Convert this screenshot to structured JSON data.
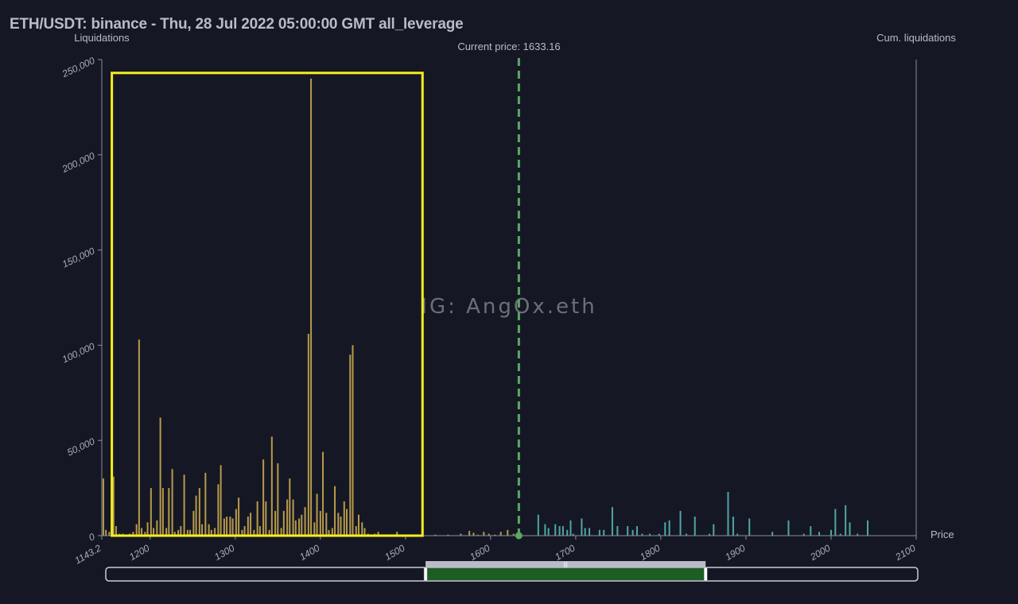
{
  "title": "ETH/USDT: binance - Thu, 28 Jul 2022 05:00:00 GMT all_leverage",
  "watermark": "IG: AngOx.eth",
  "colors": {
    "background": "#151824",
    "long_bars": "#b89a4a",
    "short_bars": "#4fa6a6",
    "current_price_line": "#5aa864",
    "highlight_box": "#f5ee1e",
    "axis": "#8a8e99",
    "navigator_fill": "#1d5e25"
  },
  "chart_data": {
    "type": "bar",
    "ylabel": "Liquidations",
    "y2label": "Cum. liquidations",
    "xlabel": "Price",
    "current_price_label": "Current price: 1633.16",
    "current_price": 1633.16,
    "xlim": [
      1143.2,
      2100
    ],
    "ylim": [
      0,
      250000
    ],
    "x_ticks": [
      "1143.2",
      "1200",
      "1300",
      "1400",
      "1500",
      "1600",
      "1700",
      "1800",
      "1900",
      "2000",
      "2100"
    ],
    "y_ticks": [
      "0",
      "50,000",
      "100,000",
      "150,000",
      "200,000",
      "250,000"
    ],
    "highlight_box_price_range": [
      1155,
      1520
    ],
    "highlight_box_value_range": [
      0,
      243000
    ],
    "series": [
      {
        "side": "long",
        "points": [
          [
            1145,
            30000
          ],
          [
            1148,
            3000
          ],
          [
            1152,
            2000
          ],
          [
            1157,
            31000
          ],
          [
            1160,
            5000
          ],
          [
            1164,
            1000
          ],
          [
            1168,
            1000
          ],
          [
            1172,
            500
          ],
          [
            1176,
            1000
          ],
          [
            1180,
            2000
          ],
          [
            1184,
            6000
          ],
          [
            1187,
            103000
          ],
          [
            1190,
            4000
          ],
          [
            1194,
            2000
          ],
          [
            1197,
            7000
          ],
          [
            1201,
            25000
          ],
          [
            1204,
            4000
          ],
          [
            1208,
            8000
          ],
          [
            1212,
            62000
          ],
          [
            1215,
            25000
          ],
          [
            1219,
            4000
          ],
          [
            1222,
            25000
          ],
          [
            1226,
            35000
          ],
          [
            1229,
            2000
          ],
          [
            1233,
            3000
          ],
          [
            1236,
            5000
          ],
          [
            1240,
            32000
          ],
          [
            1244,
            3000
          ],
          [
            1247,
            3000
          ],
          [
            1251,
            13000
          ],
          [
            1254,
            21000
          ],
          [
            1258,
            25000
          ],
          [
            1261,
            6000
          ],
          [
            1265,
            33000
          ],
          [
            1269,
            6000
          ],
          [
            1272,
            3000
          ],
          [
            1276,
            4000
          ],
          [
            1280,
            27000
          ],
          [
            1283,
            37000
          ],
          [
            1287,
            9000
          ],
          [
            1290,
            10000
          ],
          [
            1294,
            10000
          ],
          [
            1297,
            9000
          ],
          [
            1301,
            14000
          ],
          [
            1304,
            20000
          ],
          [
            1308,
            3000
          ],
          [
            1311,
            5000
          ],
          [
            1315,
            10000
          ],
          [
            1318,
            12000
          ],
          [
            1322,
            3000
          ],
          [
            1326,
            18000
          ],
          [
            1329,
            5000
          ],
          [
            1333,
            40000
          ],
          [
            1336,
            18000
          ],
          [
            1340,
            3000
          ],
          [
            1343,
            52000
          ],
          [
            1347,
            13000
          ],
          [
            1350,
            38000
          ],
          [
            1354,
            4000
          ],
          [
            1357,
            13000
          ],
          [
            1361,
            19000
          ],
          [
            1364,
            30000
          ],
          [
            1368,
            19000
          ],
          [
            1371,
            8000
          ],
          [
            1375,
            9000
          ],
          [
            1378,
            11000
          ],
          [
            1382,
            15000
          ],
          [
            1386,
            106000
          ],
          [
            1389,
            240000
          ],
          [
            1393,
            7000
          ],
          [
            1396,
            22000
          ],
          [
            1400,
            13000
          ],
          [
            1403,
            44000
          ],
          [
            1407,
            12000
          ],
          [
            1410,
            3000
          ],
          [
            1414,
            4000
          ],
          [
            1417,
            26000
          ],
          [
            1421,
            12000
          ],
          [
            1424,
            10000
          ],
          [
            1428,
            18000
          ],
          [
            1431,
            14000
          ],
          [
            1435,
            95000
          ],
          [
            1438,
            100000
          ],
          [
            1442,
            5000
          ],
          [
            1445,
            11000
          ],
          [
            1449,
            7000
          ],
          [
            1452,
            4000
          ],
          [
            1456,
            1000
          ],
          [
            1460,
            500
          ],
          [
            1464,
            1000
          ],
          [
            1468,
            2000
          ],
          [
            1478,
            500
          ],
          [
            1490,
            2000
          ],
          [
            1505,
            500
          ],
          [
            1520,
            500
          ],
          [
            1535,
            500
          ],
          [
            1550,
            500
          ],
          [
            1565,
            1000
          ],
          [
            1575,
            2500
          ],
          [
            1580,
            1500
          ],
          [
            1585,
            500
          ],
          [
            1592,
            2000
          ],
          [
            1598,
            1000
          ],
          [
            1605,
            500
          ],
          [
            1612,
            2000
          ],
          [
            1620,
            3000
          ],
          [
            1627,
            1000
          ]
        ]
      },
      {
        "side": "short",
        "points": [
          [
            1656,
            11000
          ],
          [
            1664,
            6000
          ],
          [
            1668,
            4000
          ],
          [
            1676,
            6000
          ],
          [
            1681,
            5000
          ],
          [
            1685,
            5000
          ],
          [
            1690,
            3000
          ],
          [
            1694,
            8000
          ],
          [
            1697,
            1000
          ],
          [
            1707,
            9000
          ],
          [
            1711,
            4000
          ],
          [
            1716,
            4000
          ],
          [
            1728,
            3000
          ],
          [
            1733,
            3000
          ],
          [
            1743,
            15000
          ],
          [
            1749,
            5000
          ],
          [
            1761,
            5000
          ],
          [
            1767,
            3000
          ],
          [
            1772,
            5000
          ],
          [
            1778,
            1000
          ],
          [
            1787,
            1000
          ],
          [
            1798,
            1000
          ],
          [
            1805,
            7000
          ],
          [
            1810,
            8000
          ],
          [
            1823,
            13000
          ],
          [
            1830,
            1000
          ],
          [
            1840,
            10000
          ],
          [
            1857,
            1000
          ],
          [
            1862,
            6000
          ],
          [
            1879,
            23000
          ],
          [
            1885,
            10000
          ],
          [
            1890,
            1000
          ],
          [
            1904,
            9000
          ],
          [
            1931,
            2000
          ],
          [
            1950,
            8000
          ],
          [
            1968,
            1000
          ],
          [
            1976,
            5000
          ],
          [
            1986,
            2000
          ],
          [
            2000,
            3000
          ],
          [
            2005,
            14000
          ],
          [
            2011,
            1000
          ],
          [
            2017,
            16000
          ],
          [
            2022,
            7000
          ],
          [
            2031,
            1000
          ],
          [
            2043,
            8000
          ]
        ]
      }
    ],
    "navigator": {
      "full_range": [
        1143.2,
        2100
      ],
      "selected_range": [
        1520,
        1850
      ]
    }
  }
}
